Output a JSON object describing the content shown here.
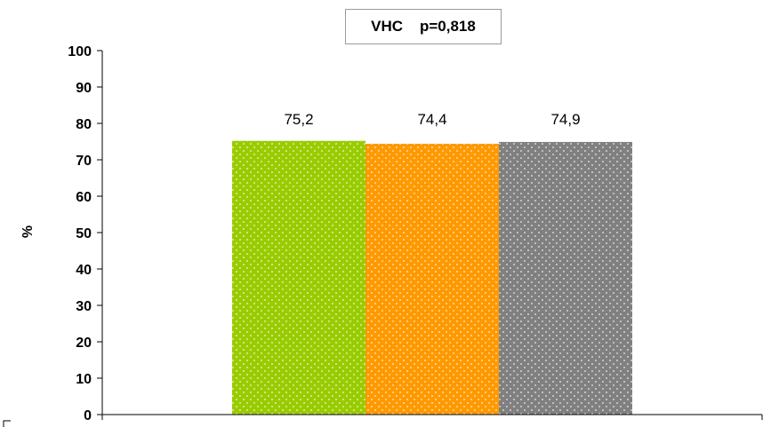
{
  "chart_data": {
    "type": "bar",
    "title": "VHC    p=0,818",
    "ylabel": "%",
    "xlabel": "",
    "ylim": [
      0,
      100
    ],
    "yticks": [
      "0",
      "10",
      "20",
      "30",
      "40",
      "50",
      "60",
      "70",
      "80",
      "90",
      "100"
    ],
    "categories": [
      "",
      "",
      ""
    ],
    "values": [
      75.2,
      74.4,
      74.9
    ],
    "value_labels": [
      "75,2",
      "74,4",
      "74,9"
    ],
    "colors": [
      "#99cc00",
      "#ff9900",
      "#808080"
    ],
    "pattern": "dotted",
    "grid": false,
    "legend": "none"
  }
}
